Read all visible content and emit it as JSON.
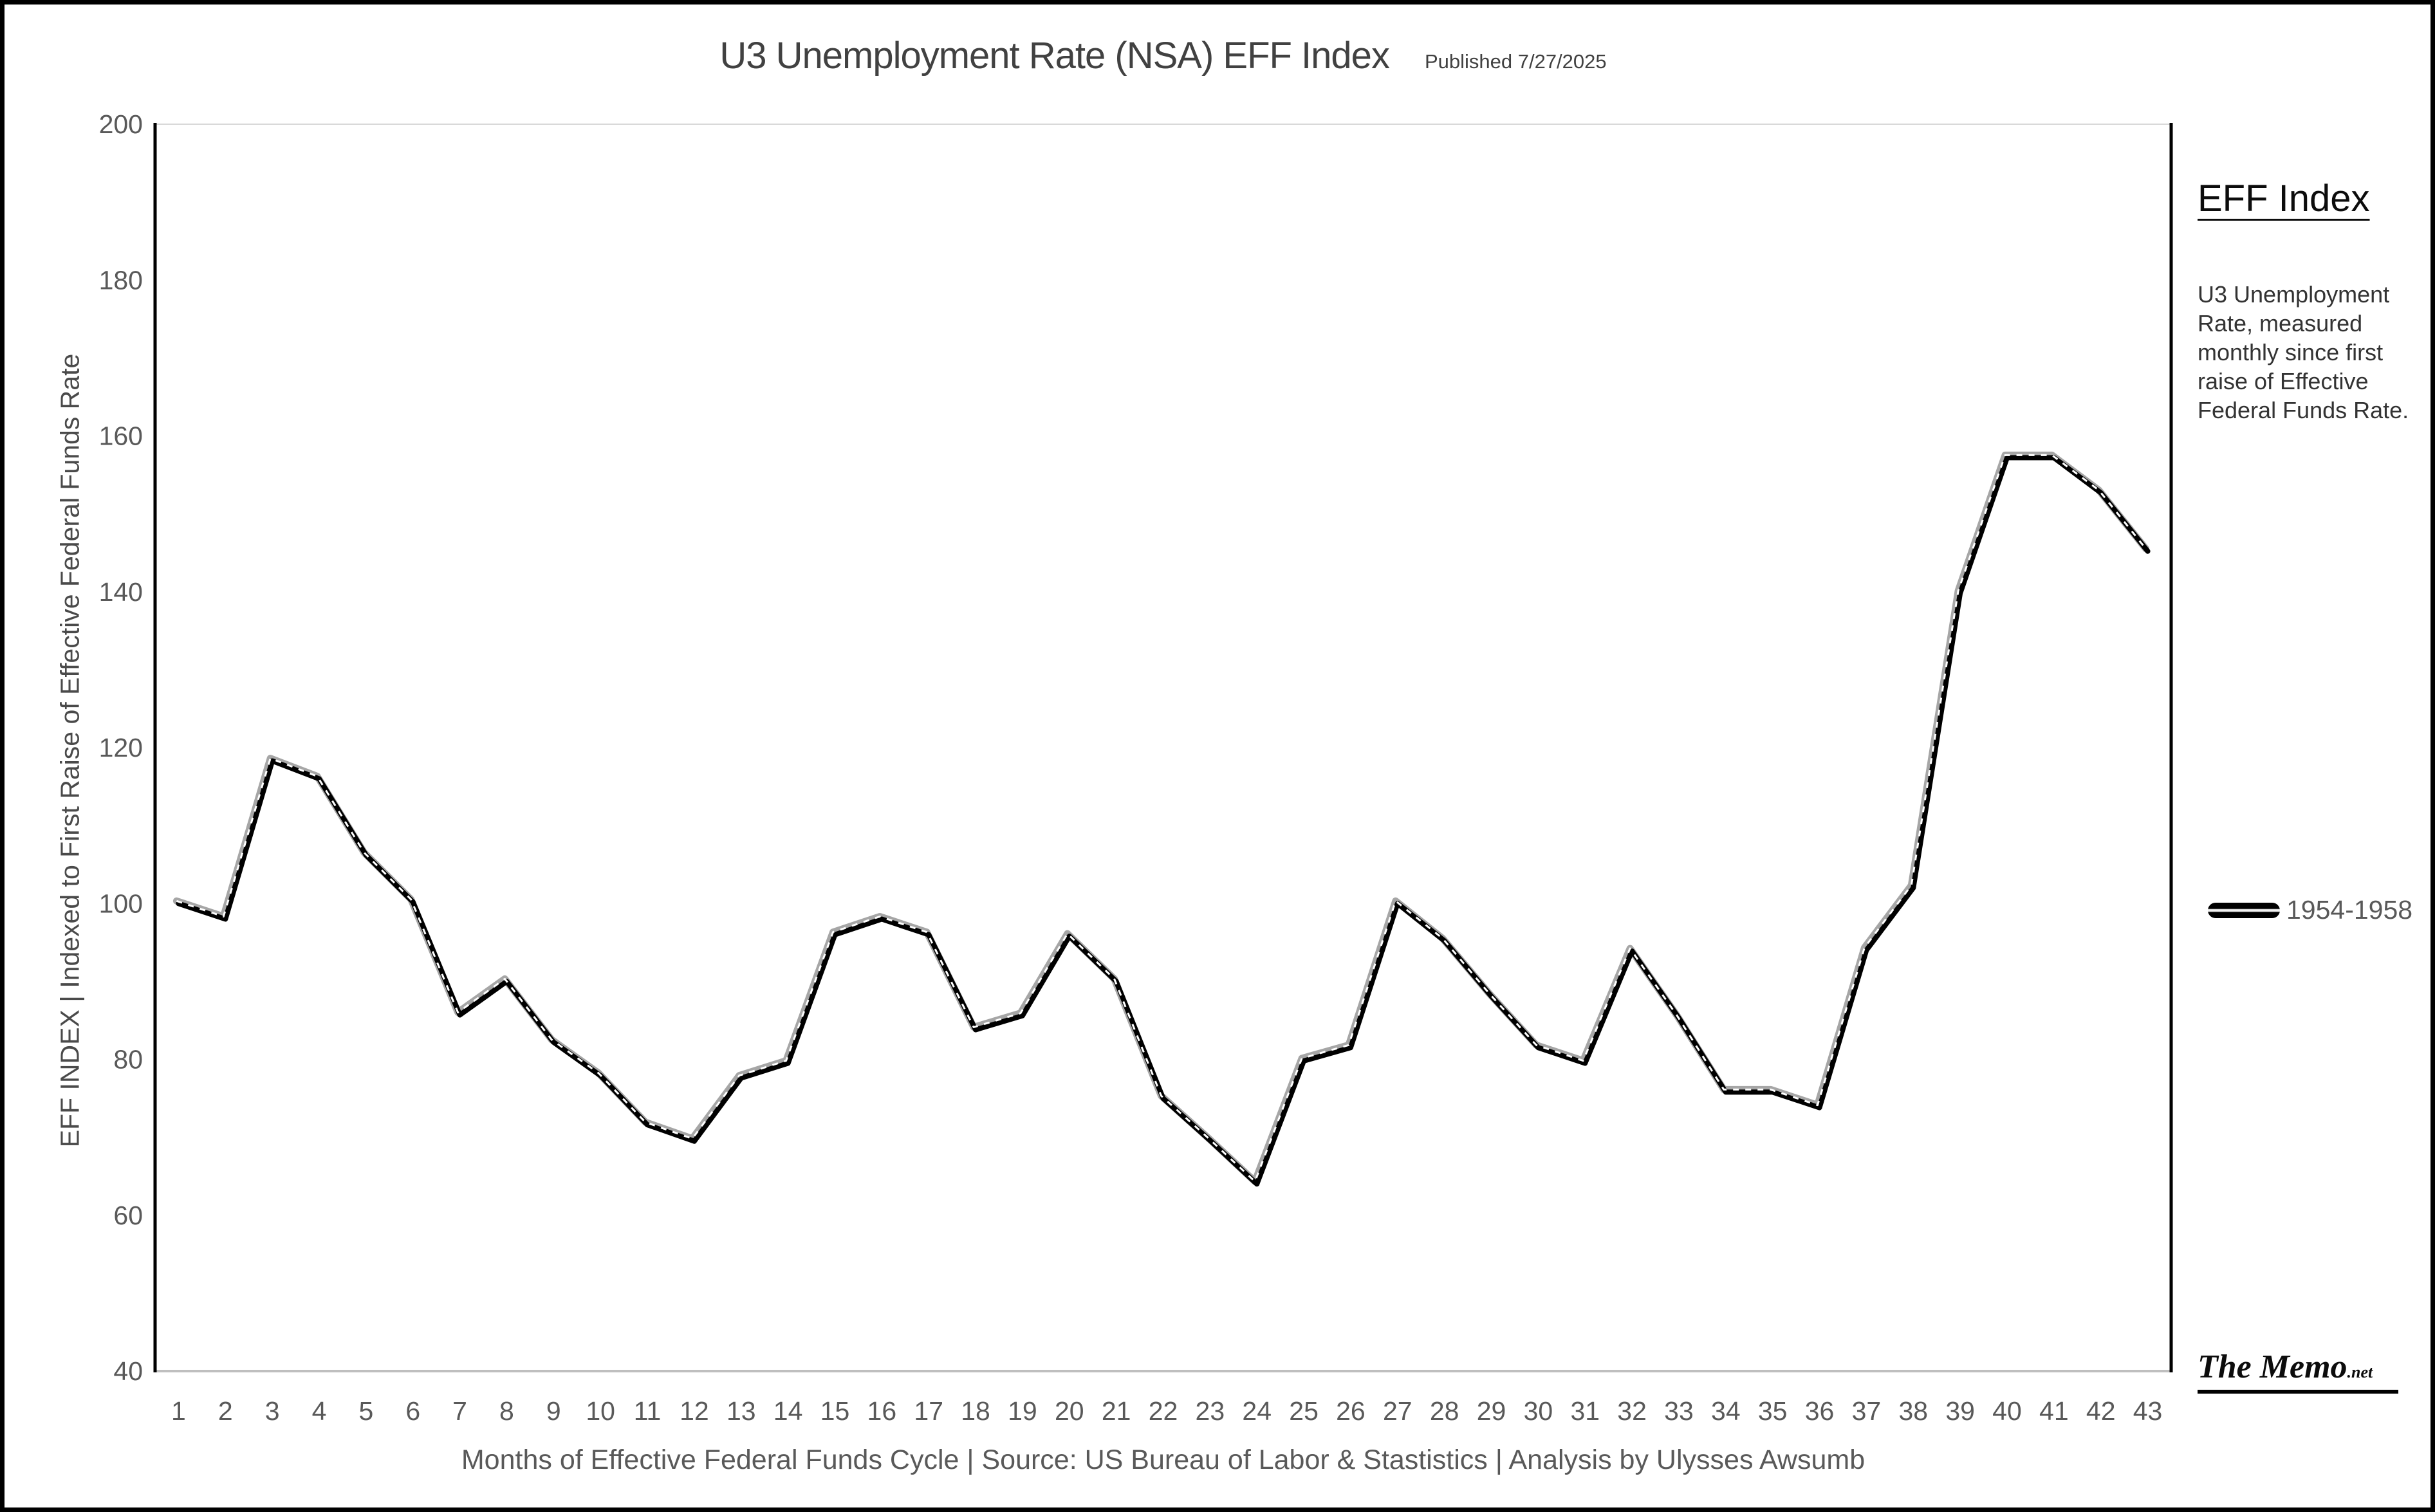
{
  "header": {
    "title": "U3 Unemployment Rate (NSA) EFF Index",
    "published": "Published 7/27/2025"
  },
  "side_panel": {
    "heading": "EFF Index",
    "description": "U3 Unemployment Rate, measured monthly since first raise of Effective Federal Funds Rate."
  },
  "legend": {
    "series_label": "1954-1958"
  },
  "branding": {
    "name": "The Memo",
    "tld": ".net"
  },
  "colors": {
    "title_text": "#414141",
    "axis_text": "#595959",
    "line": "#000000",
    "line_fringe": "#a6a6a6",
    "line_highlight": "#ffffff",
    "axis_left": "#000000",
    "axis_right": "#000000",
    "axis_bottom": "#bfbfbf",
    "plot_frame": "#d9d9d9"
  },
  "chart_data": {
    "type": "line",
    "title": "U3 Unemployment Rate (NSA) EFF Index",
    "xlabel": "Months of Effective Federal Funds Cycle | Source: US Bureau of Labor & Stastistics | Analysis by Ulysses Awsumb",
    "ylabel": "EFF INDEX | Indexed to First Raise of Effective Federal Funds Rate",
    "ylim": [
      40,
      200
    ],
    "y_ticks": [
      200,
      180,
      160,
      140,
      120,
      100,
      80,
      60,
      40
    ],
    "x_ticks": [
      1,
      2,
      3,
      4,
      5,
      6,
      7,
      8,
      9,
      10,
      11,
      12,
      13,
      14,
      15,
      16,
      17,
      18,
      19,
      20,
      21,
      22,
      23,
      24,
      25,
      26,
      27,
      28,
      29,
      30,
      31,
      32,
      33,
      34,
      35,
      36,
      37,
      38,
      39,
      40,
      41,
      42,
      43
    ],
    "grid": false,
    "legend_position": "right",
    "series": [
      {
        "name": "1954-1958",
        "x": [
          1,
          2,
          3,
          4,
          5,
          6,
          7,
          8,
          9,
          10,
          11,
          12,
          13,
          14,
          15,
          16,
          17,
          18,
          19,
          20,
          21,
          22,
          23,
          24,
          25,
          26,
          27,
          28,
          29,
          30,
          31,
          32,
          33,
          34,
          35,
          36,
          37,
          38,
          39,
          40,
          41,
          42,
          43
        ],
        "values": [
          100.0,
          98.0,
          118.3,
          116.0,
          106.2,
          100.2,
          85.7,
          90.0,
          82.2,
          77.9,
          71.6,
          69.5,
          77.6,
          79.5,
          96.0,
          98.0,
          96.0,
          83.8,
          85.6,
          95.8,
          90.0,
          75.0,
          69.6,
          64.0,
          79.8,
          81.5,
          100.0,
          95.2,
          88.1,
          81.5,
          79.5,
          93.9,
          85.3,
          75.8,
          75.8,
          73.8,
          94.0,
          102.0,
          139.8,
          157.2,
          157.2,
          152.7,
          145.2
        ]
      }
    ]
  }
}
